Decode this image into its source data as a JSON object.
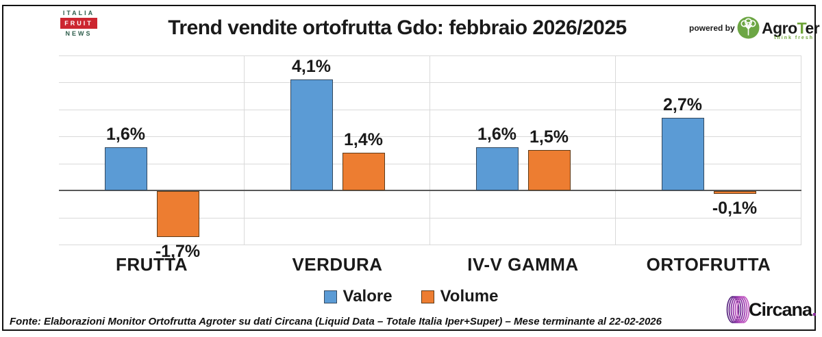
{
  "header": {
    "title": "Trend vendite ortofrutta Gdo: febbraio 2026/2025",
    "brand": {
      "line1": "ITALIA",
      "line2": "FRUIT",
      "line3": "NEWS"
    },
    "powered_by": "powered by",
    "agroter": {
      "pre": "Agro",
      "t": "T",
      "post": "er",
      "tagline": "think fresh"
    }
  },
  "chart_data": {
    "type": "bar",
    "categories": [
      "FRUTTA",
      "VERDURA",
      "IV-V GAMMA",
      "ORTOFRUTTA"
    ],
    "series": [
      {
        "name": "Valore",
        "color": "#5b9bd5",
        "border": "#33485e",
        "values": [
          1.6,
          4.1,
          1.6,
          2.7
        ],
        "labels": [
          "1,6%",
          "4,1%",
          "1,6%",
          "2,7%"
        ]
      },
      {
        "name": "Volume",
        "color": "#ed7d31",
        "border": "#5e3a17",
        "values": [
          -1.7,
          1.4,
          1.5,
          -0.1
        ],
        "labels": [
          "-1,7%",
          "1,4%",
          "1,5%",
          "-0,1%"
        ]
      }
    ],
    "title": "Trend vendite ortofrutta Gdo: febbraio 2026/2025",
    "xlabel": "",
    "ylabel": "",
    "ylim": [
      -2,
      5
    ],
    "gridline_step": 1,
    "grid": true,
    "legend_position": "bottom",
    "gridline_color": "#d9d9d9",
    "baseline_color": "#595959"
  },
  "legend": [
    {
      "label": "Valore",
      "color": "#5b9bd5",
      "border": "#33485e"
    },
    {
      "label": "Volume",
      "color": "#ed7d31",
      "border": "#5e3a17"
    }
  ],
  "footer": {
    "source": "Fonte: Elaborazioni Monitor Ortofrutta Agroter su dati Circana (Liquid Data – Totale Italia Iper+Super) – Mese terminante al 22-02-2026",
    "circana": "Circana",
    "circana_dot": "."
  }
}
